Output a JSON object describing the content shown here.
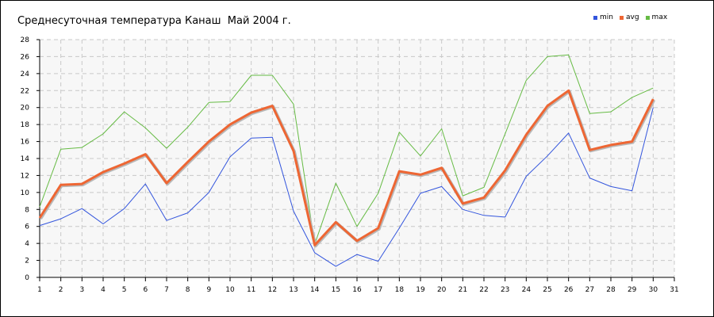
{
  "chart_data": {
    "type": "line",
    "title": "Среднесуточная температура Канаш  Май 2004 г.",
    "x": [
      1,
      2,
      3,
      4,
      5,
      6,
      7,
      8,
      9,
      10,
      11,
      12,
      13,
      14,
      15,
      16,
      17,
      18,
      19,
      20,
      21,
      22,
      23,
      24,
      25,
      26,
      27,
      28,
      29,
      30
    ],
    "xlim": [
      1,
      31
    ],
    "ylim": [
      0,
      28
    ],
    "xticks": [
      "1",
      "2",
      "3",
      "4",
      "5",
      "6",
      "7",
      "8",
      "9",
      "10",
      "11",
      "12",
      "13",
      "14",
      "15",
      "16",
      "17",
      "18",
      "19",
      "20",
      "21",
      "22",
      "23",
      "24",
      "25",
      "26",
      "27",
      "28",
      "29",
      "30",
      "31"
    ],
    "yticks": [
      "0",
      "2",
      "4",
      "6",
      "8",
      "10",
      "12",
      "14",
      "16",
      "18",
      "20",
      "22",
      "24",
      "26",
      "28"
    ],
    "grid": true,
    "legend_position": "top-right",
    "series": [
      {
        "name": "min",
        "color": "#3355dd",
        "values": [
          6.1,
          6.9,
          8.1,
          6.3,
          8.1,
          11.0,
          6.7,
          7.6,
          10.0,
          14.2,
          16.4,
          16.5,
          7.8,
          2.9,
          1.3,
          2.7,
          1.9,
          5.8,
          9.9,
          10.7,
          8.0,
          7.3,
          7.1,
          11.9,
          14.3,
          17.0,
          11.7,
          10.7,
          10.2,
          20.0
        ]
      },
      {
        "name": "avg",
        "color": "#ee6633",
        "values": [
          7.0,
          10.9,
          11.0,
          12.4,
          13.4,
          14.5,
          11.1,
          13.6,
          16.0,
          18.0,
          19.4,
          20.2,
          14.9,
          3.8,
          6.5,
          4.3,
          5.8,
          12.5,
          12.1,
          12.9,
          8.7,
          9.4,
          12.6,
          16.8,
          20.2,
          22.0,
          15.0,
          15.6,
          16.0,
          21.0
        ]
      },
      {
        "name": "max",
        "color": "#66bb44",
        "values": [
          8.3,
          15.1,
          15.3,
          16.9,
          19.5,
          17.6,
          15.2,
          17.7,
          20.6,
          20.7,
          23.8,
          23.8,
          20.4,
          3.9,
          11.1,
          6.0,
          9.9,
          17.1,
          14.3,
          17.5,
          9.6,
          10.6,
          16.9,
          23.2,
          26.0,
          26.2,
          19.3,
          19.5,
          21.2,
          22.3
        ]
      }
    ]
  }
}
